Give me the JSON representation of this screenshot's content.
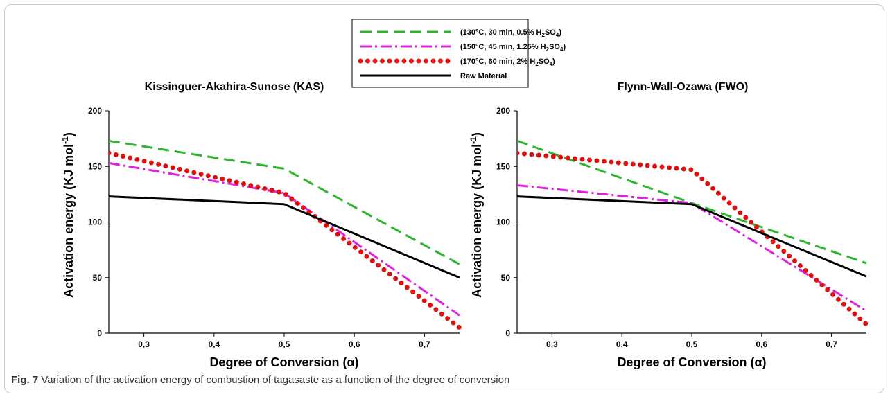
{
  "figure": {
    "caption_label": "Fig. 7",
    "caption_text": "Variation of the activation energy of combustion of tagasaste as a function of the degree of conversion"
  },
  "legend": {
    "entries": [
      {
        "pre": "(130°C, 30 min, 0.5% H",
        "sub1": "2",
        "mid": "SO",
        "sub2": "4",
        "post": ")",
        "color": "#2db52d",
        "style": "dash"
      },
      {
        "pre": "(150°C, 45 min, 1.25% H",
        "sub1": "2",
        "mid": "SO",
        "sub2": "4",
        "post": ")",
        "color": "#e020e0",
        "style": "dashdot"
      },
      {
        "pre": "(170°C, 60 min, 2% H",
        "sub1": "2",
        "mid": "SO",
        "sub2": "4",
        "post": ")",
        "color": "#e01010",
        "style": "dot"
      },
      {
        "pre": "Raw Material",
        "sub1": "",
        "mid": "",
        "sub2": "",
        "post": "",
        "color": "#000000",
        "style": "solid"
      }
    ]
  },
  "axes": {
    "ylabel_main": "Activation energy (KJ mol",
    "ylabel_sup": "-1",
    "ylabel_end": ")",
    "xlabel": "Degree of Conversion (α)"
  },
  "chart_data": [
    {
      "type": "line",
      "title": "Kissinguer-Akahira-Sunose (KAS)",
      "xlabel": "Degree of Conversion (α)",
      "ylabel": "Activation energy (KJ mol-1)",
      "xlim": [
        0.25,
        0.75
      ],
      "ylim": [
        0,
        200
      ],
      "xticks": [
        0.3,
        0.4,
        0.5,
        0.6,
        0.7
      ],
      "xtick_labels": [
        "0,3",
        "0,4",
        "0,5",
        "0,6",
        "0,7"
      ],
      "yticks": [
        0,
        50,
        100,
        150,
        200
      ],
      "ytick_labels": [
        "0",
        "50",
        "100",
        "150",
        "200"
      ],
      "x": [
        0.25,
        0.5,
        0.75
      ],
      "series": [
        {
          "name": "(130°C, 30 min, 0.5% H2SO4)",
          "values": [
            173,
            148,
            62
          ],
          "color": "#2db52d",
          "style": "dash"
        },
        {
          "name": "(150°C, 45 min, 1.25% H2SO4)",
          "values": [
            153,
            126,
            16
          ],
          "color": "#e020e0",
          "style": "dashdot"
        },
        {
          "name": "(170°C, 60 min, 2% H2SO4)",
          "values": [
            162,
            126,
            5
          ],
          "color": "#e01010",
          "style": "dot"
        },
        {
          "name": "Raw Material",
          "values": [
            123,
            116,
            50
          ],
          "color": "#000000",
          "style": "solid"
        }
      ]
    },
    {
      "type": "line",
      "title": "Flynn-Wall-Ozawa (FWO)",
      "xlabel": "Degree of Conversion (α)",
      "ylabel": "Activation energy (KJ mol-1)",
      "xlim": [
        0.25,
        0.75
      ],
      "ylim": [
        0,
        200
      ],
      "xticks": [
        0.3,
        0.4,
        0.5,
        0.6,
        0.7
      ],
      "xtick_labels": [
        "0,3",
        "0,4",
        "0,5",
        "0,6",
        "0,7"
      ],
      "yticks": [
        0,
        50,
        100,
        150,
        200
      ],
      "ytick_labels": [
        "0",
        "50",
        "100",
        "150",
        "200"
      ],
      "x": [
        0.25,
        0.5,
        0.75
      ],
      "series": [
        {
          "name": "(130°C, 30 min, 0.5% H2SO4)",
          "values": [
            173,
            117,
            63
          ],
          "color": "#2db52d",
          "style": "dash"
        },
        {
          "name": "(150°C, 45 min, 1.25% H2SO4)",
          "values": [
            133,
            117,
            20
          ],
          "color": "#e020e0",
          "style": "dashdot"
        },
        {
          "name": "(170°C, 60 min, 2% H2SO4)",
          "values": [
            162,
            147,
            8
          ],
          "color": "#e01010",
          "style": "dot"
        },
        {
          "name": "Raw Material",
          "values": [
            123,
            116,
            51
          ],
          "color": "#000000",
          "style": "solid"
        }
      ]
    }
  ]
}
